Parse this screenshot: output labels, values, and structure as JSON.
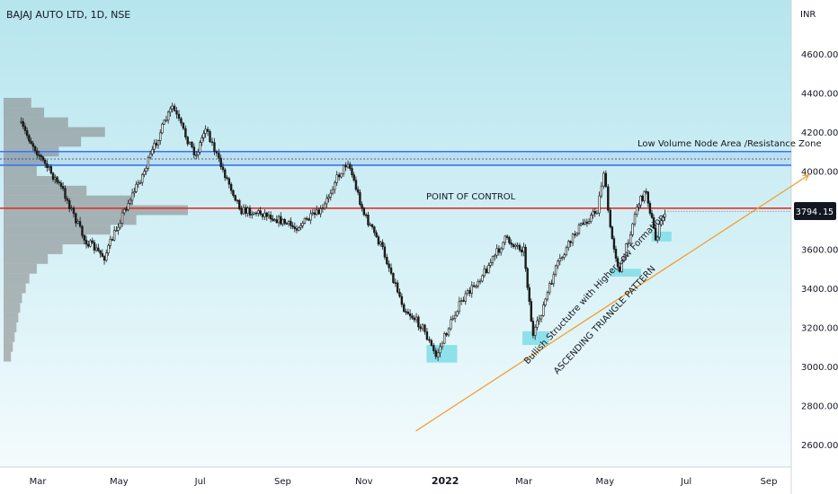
{
  "chart_data": {
    "type": "candlestick",
    "title": "BAJAJ AUTO LTD, 1D, NSE",
    "currency": "INR",
    "x_axis": {
      "ticks": [
        "Mar",
        "May",
        "Jul",
        "Sep",
        "Nov",
        "2022",
        "Mar",
        "May",
        "Jul",
        "Sep"
      ]
    },
    "y_axis": {
      "range": [
        2500,
        4800
      ],
      "ticks": [
        "4600.00",
        "4400.00",
        "4200.00",
        "4000.00",
        "3600.00",
        "3400.00",
        "3200.00",
        "3000.00",
        "2800.00",
        "2600.00"
      ]
    },
    "last_price": "3794.15",
    "price_path": [
      [
        "2021-02-15",
        4250
      ],
      [
        "2021-03-05",
        4050
      ],
      [
        "2021-03-20",
        3900
      ],
      [
        "2021-04-05",
        3650
      ],
      [
        "2021-04-20",
        3560
      ],
      [
        "2021-05-05",
        3800
      ],
      [
        "2021-05-20",
        4000
      ],
      [
        "2021-06-01",
        4200
      ],
      [
        "2021-06-10",
        4330
      ],
      [
        "2021-06-20",
        4180
      ],
      [
        "2021-06-28",
        4080
      ],
      [
        "2021-07-05",
        4230
      ],
      [
        "2021-07-15",
        4050
      ],
      [
        "2021-08-01",
        3800
      ],
      [
        "2021-08-20",
        3780
      ],
      [
        "2021-09-10",
        3710
      ],
      [
        "2021-10-01",
        3800
      ],
      [
        "2021-10-10",
        3950
      ],
      [
        "2021-10-20",
        4050
      ],
      [
        "2021-11-01",
        3780
      ],
      [
        "2021-11-15",
        3600
      ],
      [
        "2021-12-01",
        3300
      ],
      [
        "2021-12-15",
        3200
      ],
      [
        "2021-12-25",
        3050
      ],
      [
        "2022-01-10",
        3300
      ],
      [
        "2022-02-01",
        3500
      ],
      [
        "2022-02-15",
        3650
      ],
      [
        "2022-03-01",
        3600
      ],
      [
        "2022-03-08",
        3150
      ],
      [
        "2022-03-25",
        3500
      ],
      [
        "2022-04-10",
        3700
      ],
      [
        "2022-04-25",
        3800
      ],
      [
        "2022-04-30",
        4000
      ],
      [
        "2022-05-05",
        3700
      ],
      [
        "2022-05-12",
        3480
      ],
      [
        "2022-05-25",
        3820
      ],
      [
        "2022-06-01",
        3900
      ],
      [
        "2022-06-08",
        3650
      ],
      [
        "2022-06-15",
        3794
      ]
    ],
    "volume_profile": [
      [
        4350,
        0.15
      ],
      [
        4300,
        0.22
      ],
      [
        4250,
        0.35
      ],
      [
        4200,
        0.55
      ],
      [
        4150,
        0.42
      ],
      [
        4100,
        0.3
      ],
      [
        4050,
        0.22
      ],
      [
        4000,
        0.18
      ],
      [
        3950,
        0.3
      ],
      [
        3900,
        0.45
      ],
      [
        3850,
        0.7
      ],
      [
        3800,
        1.0
      ],
      [
        3750,
        0.72
      ],
      [
        3700,
        0.58
      ],
      [
        3650,
        0.45
      ],
      [
        3600,
        0.32
      ],
      [
        3550,
        0.24
      ],
      [
        3500,
        0.18
      ],
      [
        3450,
        0.14
      ],
      [
        3400,
        0.12
      ],
      [
        3350,
        0.1
      ],
      [
        3300,
        0.09
      ],
      [
        3250,
        0.08
      ],
      [
        3200,
        0.07
      ],
      [
        3150,
        0.06
      ],
      [
        3100,
        0.05
      ],
      [
        3050,
        0.04
      ]
    ],
    "levels": {
      "resistance_zone_upper": 4100,
      "resistance_zone_lower": 4030,
      "resistance_zone_mid": 4062,
      "point_of_control": 3810
    },
    "annotations": {
      "resistance_label": "Low Volume Node Area /Resistance Zone",
      "poc_label": "POINT OF CONTROL",
      "trend_label_1": "Bullish Structutre with Higher Low Formation",
      "trend_label_2": "ASCENDING TRIANGLE PATTERN"
    },
    "trendline": [
      [
        "2021-12-10",
        2670
      ],
      [
        "2022-10-01",
        3980
      ]
    ],
    "highlight_boxes": [
      [
        "2021-12-18",
        "2022-01-10",
        3020,
        3110
      ],
      [
        "2022-02-28",
        "2022-03-20",
        3110,
        3180
      ],
      [
        "2022-05-05",
        "2022-05-28",
        3460,
        3500
      ],
      [
        "2022-06-05",
        "2022-06-20",
        3640,
        3690
      ]
    ],
    "grid": false,
    "colors": {
      "bg_top": "#b6e5ee",
      "bg_bottom": "#f3fbfd",
      "candle": "#1a1a1a",
      "zone_line": "#3b74f0",
      "poc_line": "#e3302f",
      "trend_line": "#f0a030",
      "highlight": "#7fdde6",
      "profile": "#808080"
    }
  }
}
